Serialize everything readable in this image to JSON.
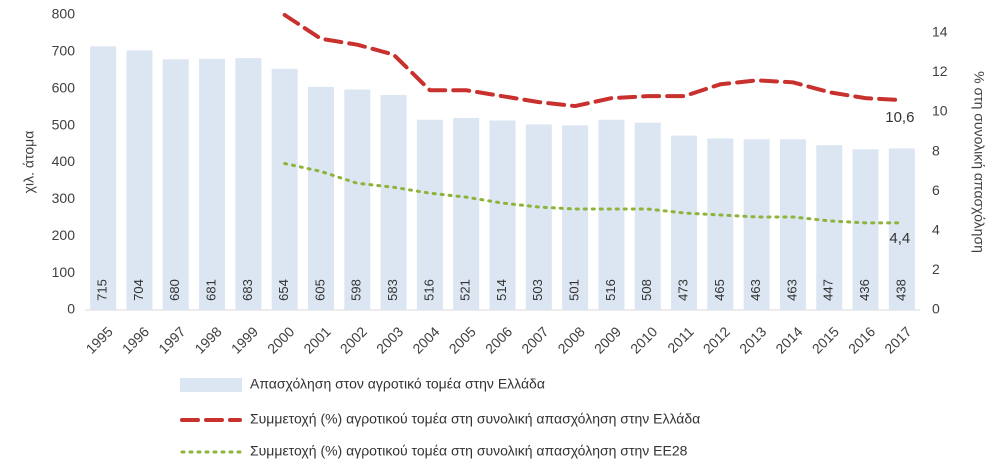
{
  "chart_data": {
    "type": "bar-line",
    "y_label": "χιλ. άτομα",
    "y2_label": "% στη συνολική απασχόληση",
    "categories": [
      "1995",
      "1996",
      "1997",
      "1998",
      "1999",
      "2000",
      "2001",
      "2002",
      "2003",
      "2004",
      "2005",
      "2006",
      "2007",
      "2008",
      "2009",
      "2010",
      "2011",
      "2012",
      "2013",
      "2014",
      "2015",
      "2016",
      "2017"
    ],
    "ylim": [
      0,
      800
    ],
    "yticks": [
      0,
      100,
      200,
      300,
      400,
      500,
      600,
      700,
      800
    ],
    "y2lim": [
      0,
      14.9
    ],
    "y2ticks": [
      0,
      2,
      4,
      6,
      8,
      10,
      12,
      14
    ],
    "series": [
      {
        "name": "Απασχόληση στον αγροτικό τομέα στην Ελλάδα",
        "kind": "bar",
        "color": "#dce6f2",
        "values": [
          715,
          704,
          680,
          681,
          683,
          654,
          605,
          598,
          583,
          516,
          521,
          514,
          503,
          501,
          516,
          508,
          473,
          465,
          463,
          463,
          447,
          436,
          438
        ]
      },
      {
        "name": "Συμμετοχή (%) αγροτικού τομέα στη συνολική απασχόληση στην Ελλάδα",
        "kind": "line",
        "axis": "y2",
        "color": "#c8312d",
        "values": [
          null,
          null,
          null,
          null,
          null,
          14.9,
          13.7,
          13.4,
          12.9,
          11.1,
          11.1,
          10.8,
          10.5,
          10.3,
          10.7,
          10.8,
          10.8,
          11.4,
          11.6,
          11.5,
          11.0,
          10.7,
          10.6
        ],
        "value_labels": [
          null,
          null,
          null,
          null,
          null,
          null,
          null,
          null,
          null,
          null,
          null,
          null,
          null,
          null,
          null,
          null,
          null,
          null,
          null,
          null,
          null,
          null,
          "10,6"
        ]
      },
      {
        "name": "Συμμετοχή (%) αγροτικού τομέα στη συνολική απασχόληση στην ΕΕ28",
        "kind": "line",
        "axis": "y2",
        "color": "#8db33a",
        "values": [
          null,
          null,
          null,
          null,
          null,
          7.4,
          7.0,
          6.4,
          6.2,
          5.9,
          5.7,
          5.4,
          5.2,
          5.1,
          5.1,
          5.1,
          4.9,
          4.8,
          4.7,
          4.7,
          4.5,
          4.4,
          4.4
        ],
        "value_labels": [
          null,
          null,
          null,
          null,
          null,
          null,
          null,
          null,
          null,
          null,
          null,
          null,
          null,
          null,
          null,
          null,
          null,
          null,
          null,
          null,
          null,
          null,
          "4,4"
        ]
      }
    ]
  }
}
